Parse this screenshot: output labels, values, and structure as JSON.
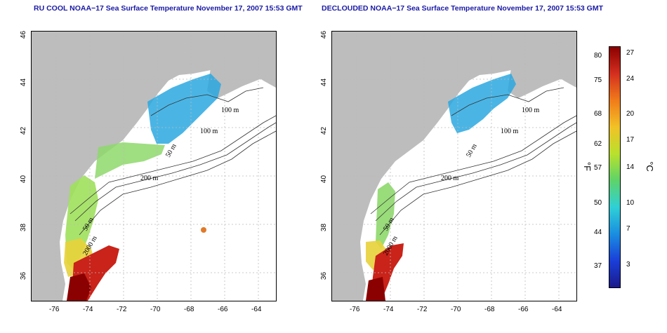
{
  "left_panel": {
    "title": "RU COOL NOAA−17 Sea Surface Temperature November 17, 2007 15:53 GMT"
  },
  "right_panel": {
    "title": "DECLOUDED NOAA−17 Sea Surface Temperature November 17, 2007 15:53 GMT"
  },
  "contour_labels": [
    "100 m",
    "100 m",
    "50 m",
    "200 m",
    "50 m",
    "2000 m"
  ],
  "y_ticks": [
    "46",
    "44",
    "42",
    "40",
    "38",
    "36"
  ],
  "x_ticks": [
    "-76",
    "-74",
    "-72",
    "-70",
    "-68",
    "-66",
    "-64"
  ],
  "colorbar": {
    "f_label": "°F",
    "c_label": "°C",
    "f_ticks": [
      "80",
      "75",
      "68",
      "62",
      "57",
      "50",
      "44",
      "37"
    ],
    "c_ticks": [
      "27",
      "24",
      "20",
      "17",
      "14",
      "10",
      "7",
      "3"
    ],
    "colors": [
      "#8b0000",
      "#d32f1f",
      "#f07b1a",
      "#f2c227",
      "#b9e02d",
      "#5ed36a",
      "#2fd0d6",
      "#1a8ee0",
      "#1a3fd8",
      "#1b1a8a"
    ]
  }
}
